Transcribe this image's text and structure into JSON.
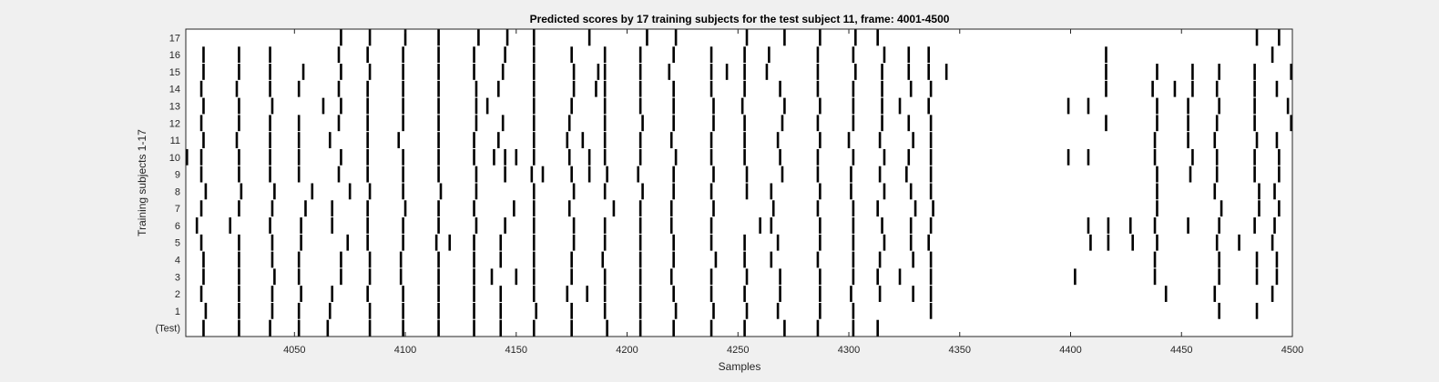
{
  "chart_data": {
    "type": "raster",
    "title": "Predicted scores by 17 training subjects for the test subject 11, frame: 4001-4500",
    "xlabel": "Samples",
    "ylabel": "Training subjects 1-17",
    "xlim": [
      4001,
      4500
    ],
    "xticks": [
      4050,
      4100,
      4150,
      4200,
      4250,
      4300,
      4350,
      4400,
      4450,
      4500
    ],
    "yticklabels": [
      "(Test)",
      "1",
      "2",
      "3",
      "4",
      "5",
      "6",
      "7",
      "8",
      "9",
      "10",
      "11",
      "12",
      "13",
      "14",
      "15",
      "16",
      "17"
    ],
    "mark_color": "#000000",
    "rows": [
      {
        "label": "(Test)",
        "x": [
          4009,
          4025,
          4039,
          4052,
          4065,
          4084,
          4099,
          4115,
          4131,
          4143,
          4158,
          4175,
          4191,
          4206,
          4221,
          4238,
          4253,
          4271,
          4286,
          4302,
          4313
        ]
      },
      {
        "label": "1",
        "x": [
          4010,
          4025,
          4040,
          4052,
          4066,
          4084,
          4099,
          4115,
          4131,
          4143,
          4159,
          4175,
          4190,
          4206,
          4222,
          4239,
          4254,
          4268,
          4287,
          4302,
          4337,
          4467,
          4484
        ]
      },
      {
        "label": "2",
        "x": [
          4008,
          4025,
          4040,
          4053,
          4067,
          4083,
          4099,
          4115,
          4131,
          4143,
          4158,
          4173,
          4182,
          4190,
          4206,
          4221,
          4238,
          4253,
          4269,
          4287,
          4301,
          4314,
          4329,
          4337,
          4443,
          4465,
          4491
        ]
      },
      {
        "label": "3",
        "x": [
          4009,
          4025,
          4041,
          4052,
          4071,
          4084,
          4098,
          4115,
          4131,
          4139,
          4150,
          4158,
          4175,
          4190,
          4206,
          4220,
          4238,
          4254,
          4269,
          4287,
          4302,
          4313,
          4323,
          4337,
          4402,
          4438,
          4467,
          4484,
          4493
        ]
      },
      {
        "label": "4",
        "x": [
          4009,
          4025,
          4040,
          4052,
          4071,
          4084,
          4098,
          4115,
          4131,
          4143,
          4158,
          4175,
          4189,
          4206,
          4221,
          4240,
          4253,
          4265,
          4286,
          4302,
          4314,
          4329,
          4337,
          4438,
          4467,
          4484,
          4493
        ]
      },
      {
        "label": "5",
        "x": [
          4008,
          4025,
          4040,
          4053,
          4074,
          4083,
          4099,
          4114,
          4120,
          4131,
          4143,
          4158,
          4176,
          4190,
          4206,
          4221,
          4238,
          4253,
          4268,
          4287,
          4302,
          4316,
          4328,
          4336,
          4409,
          4417,
          4428,
          4439,
          4466,
          4476,
          4491
        ]
      },
      {
        "label": "6",
        "x": [
          4006,
          4021,
          4039,
          4053,
          4067,
          4083,
          4099,
          4115,
          4132,
          4145,
          4158,
          4176,
          4190,
          4206,
          4220,
          4238,
          4260,
          4265,
          4287,
          4302,
          4315,
          4328,
          4337,
          4408,
          4417,
          4427,
          4438,
          4453,
          4467,
          4483,
          4492
        ]
      },
      {
        "label": "7",
        "x": [
          4008,
          4025,
          4040,
          4055,
          4067,
          4083,
          4100,
          4115,
          4131,
          4149,
          4158,
          4174,
          4194,
          4206,
          4220,
          4239,
          4266,
          4286,
          4302,
          4313,
          4330,
          4338,
          4439,
          4468,
          4485,
          4494
        ]
      },
      {
        "label": "8",
        "x": [
          4010,
          4026,
          4041,
          4058,
          4075,
          4084,
          4099,
          4116,
          4132,
          4158,
          4176,
          4190,
          4207,
          4221,
          4238,
          4254,
          4265,
          4287,
          4301,
          4316,
          4328,
          4337,
          4439,
          4465,
          4485,
          4492
        ]
      },
      {
        "label": "9",
        "x": [
          4008,
          4025,
          4039,
          4052,
          4070,
          4083,
          4099,
          4115,
          4132,
          4145,
          4157,
          4162,
          4175,
          4183,
          4191,
          4205,
          4221,
          4239,
          4254,
          4270,
          4286,
          4301,
          4314,
          4326,
          4337,
          4439,
          4454,
          4466,
          4483,
          4494
        ]
      },
      {
        "label": "10",
        "x": [
          4001,
          4008,
          4025,
          4039,
          4052,
          4071,
          4083,
          4099,
          4115,
          4131,
          4140,
          4145,
          4150,
          4158,
          4174,
          4183,
          4190,
          4206,
          4222,
          4238,
          4253,
          4269,
          4286,
          4302,
          4316,
          4327,
          4337,
          4399,
          4408,
          4438,
          4455,
          4466,
          4483,
          4494
        ]
      },
      {
        "label": "11",
        "x": [
          4009,
          4024,
          4039,
          4052,
          4066,
          4083,
          4097,
          4115,
          4131,
          4142,
          4158,
          4173,
          4180,
          4190,
          4206,
          4220,
          4238,
          4253,
          4268,
          4287,
          4300,
          4314,
          4329,
          4337,
          4438,
          4453,
          4465,
          4484,
          4493
        ]
      },
      {
        "label": "12",
        "x": [
          4008,
          4025,
          4039,
          4052,
          4070,
          4083,
          4099,
          4115,
          4132,
          4144,
          4158,
          4174,
          4190,
          4207,
          4221,
          4239,
          4253,
          4270,
          4286,
          4302,
          4315,
          4327,
          4337,
          4416,
          4439,
          4453,
          4466,
          4483,
          4500
        ]
      },
      {
        "label": "13",
        "x": [
          4009,
          4025,
          4040,
          4063,
          4071,
          4083,
          4099,
          4115,
          4132,
          4137,
          4158,
          4175,
          4190,
          4206,
          4221,
          4239,
          4252,
          4271,
          4287,
          4302,
          4315,
          4323,
          4336,
          4399,
          4408,
          4439,
          4453,
          4467,
          4483,
          4498
        ]
      },
      {
        "label": "14",
        "x": [
          4008,
          4024,
          4039,
          4052,
          4070,
          4083,
          4099,
          4115,
          4132,
          4142,
          4158,
          4176,
          4186,
          4190,
          4206,
          4221,
          4238,
          4253,
          4269,
          4286,
          4302,
          4315,
          4328,
          4337,
          4416,
          4437,
          4447,
          4455,
          4466,
          4483,
          4493
        ]
      },
      {
        "label": "15",
        "x": [
          4009,
          4025,
          4039,
          4054,
          4071,
          4084,
          4099,
          4115,
          4131,
          4144,
          4158,
          4176,
          4187,
          4190,
          4206,
          4219,
          4238,
          4245,
          4253,
          4263,
          4286,
          4303,
          4315,
          4327,
          4336,
          4344,
          4416,
          4439,
          4455,
          4467,
          4483,
          4500
        ]
      },
      {
        "label": "16",
        "x": [
          4009,
          4025,
          4039,
          4070,
          4083,
          4099,
          4115,
          4131,
          4145,
          4158,
          4175,
          4190,
          4206,
          4221,
          4238,
          4253,
          4264,
          4286,
          4302,
          4316,
          4327,
          4336,
          4416,
          4491
        ]
      },
      {
        "label": "17",
        "x": [
          4071,
          4084,
          4100,
          4115,
          4133,
          4146,
          4158,
          4183,
          4209,
          4222,
          4254,
          4271,
          4287,
          4303,
          4313,
          4484,
          4494
        ]
      }
    ]
  }
}
